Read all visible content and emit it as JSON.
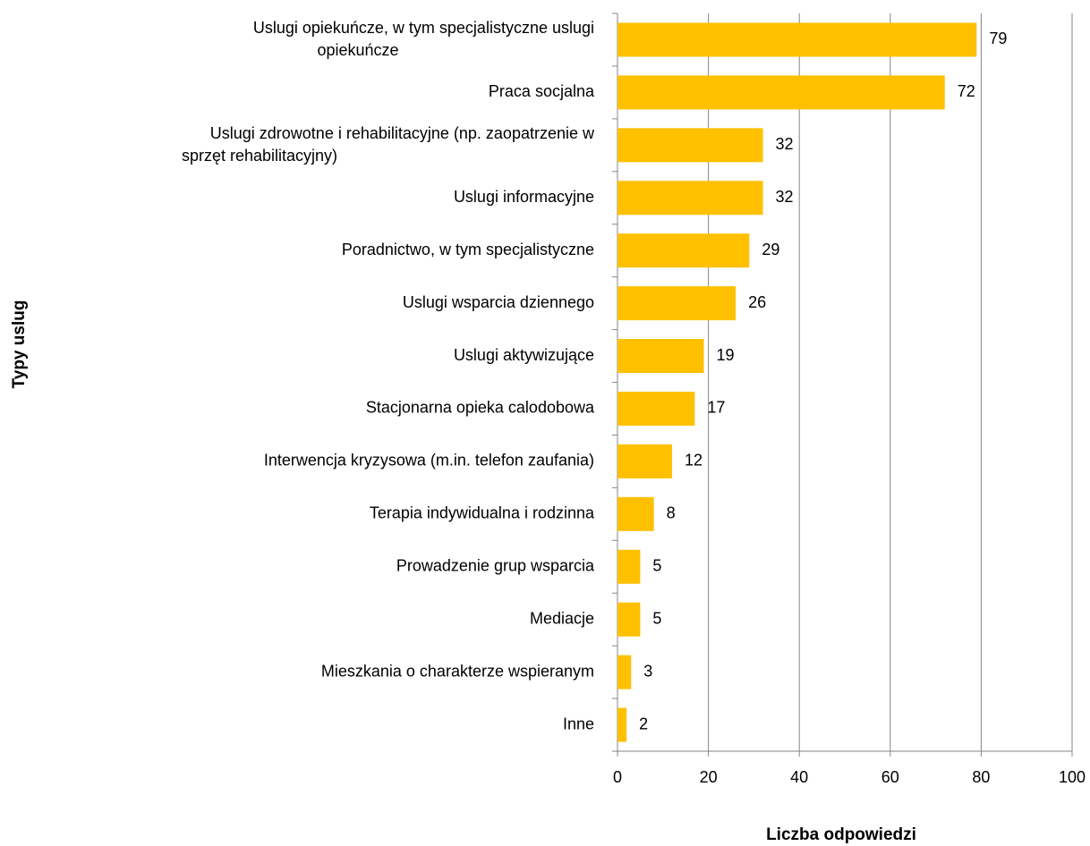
{
  "chart_data": {
    "type": "bar",
    "orientation": "horizontal",
    "categories": [
      "Uslugi opiekuńcze, w tym specjalistyczne uslugi\nopiekuńcze",
      "Praca socjalna",
      "Uslugi zdrowotne i rehabilitacyjne (np. zaopatrzenie w\nsprzęt rehabilitacyjny)",
      "Uslugi informacyjne",
      "Poradnictwo, w tym specjalistyczne",
      "Uslugi wsparcia dziennego",
      "Uslugi aktywizujące",
      "Stacjonarna opieka calodobowa",
      "Interwencja kryzysowa (m.in. telefon zaufania)",
      "Terapia indywidualna i rodzinna",
      "Prowadzenie grup wsparcia",
      "Mediacje",
      "Mieszkania o charakterze wspieranym",
      "Inne"
    ],
    "values": [
      79,
      72,
      32,
      32,
      29,
      26,
      19,
      17,
      12,
      8,
      5,
      5,
      3,
      2
    ],
    "color": "#ffc000",
    "xlim": [
      0,
      100
    ],
    "xticks": [
      0,
      20,
      40,
      60,
      80,
      100
    ],
    "grid": true,
    "xlabel": "Liczba odpowiedzi",
    "ylabel": "Typy uslug"
  }
}
